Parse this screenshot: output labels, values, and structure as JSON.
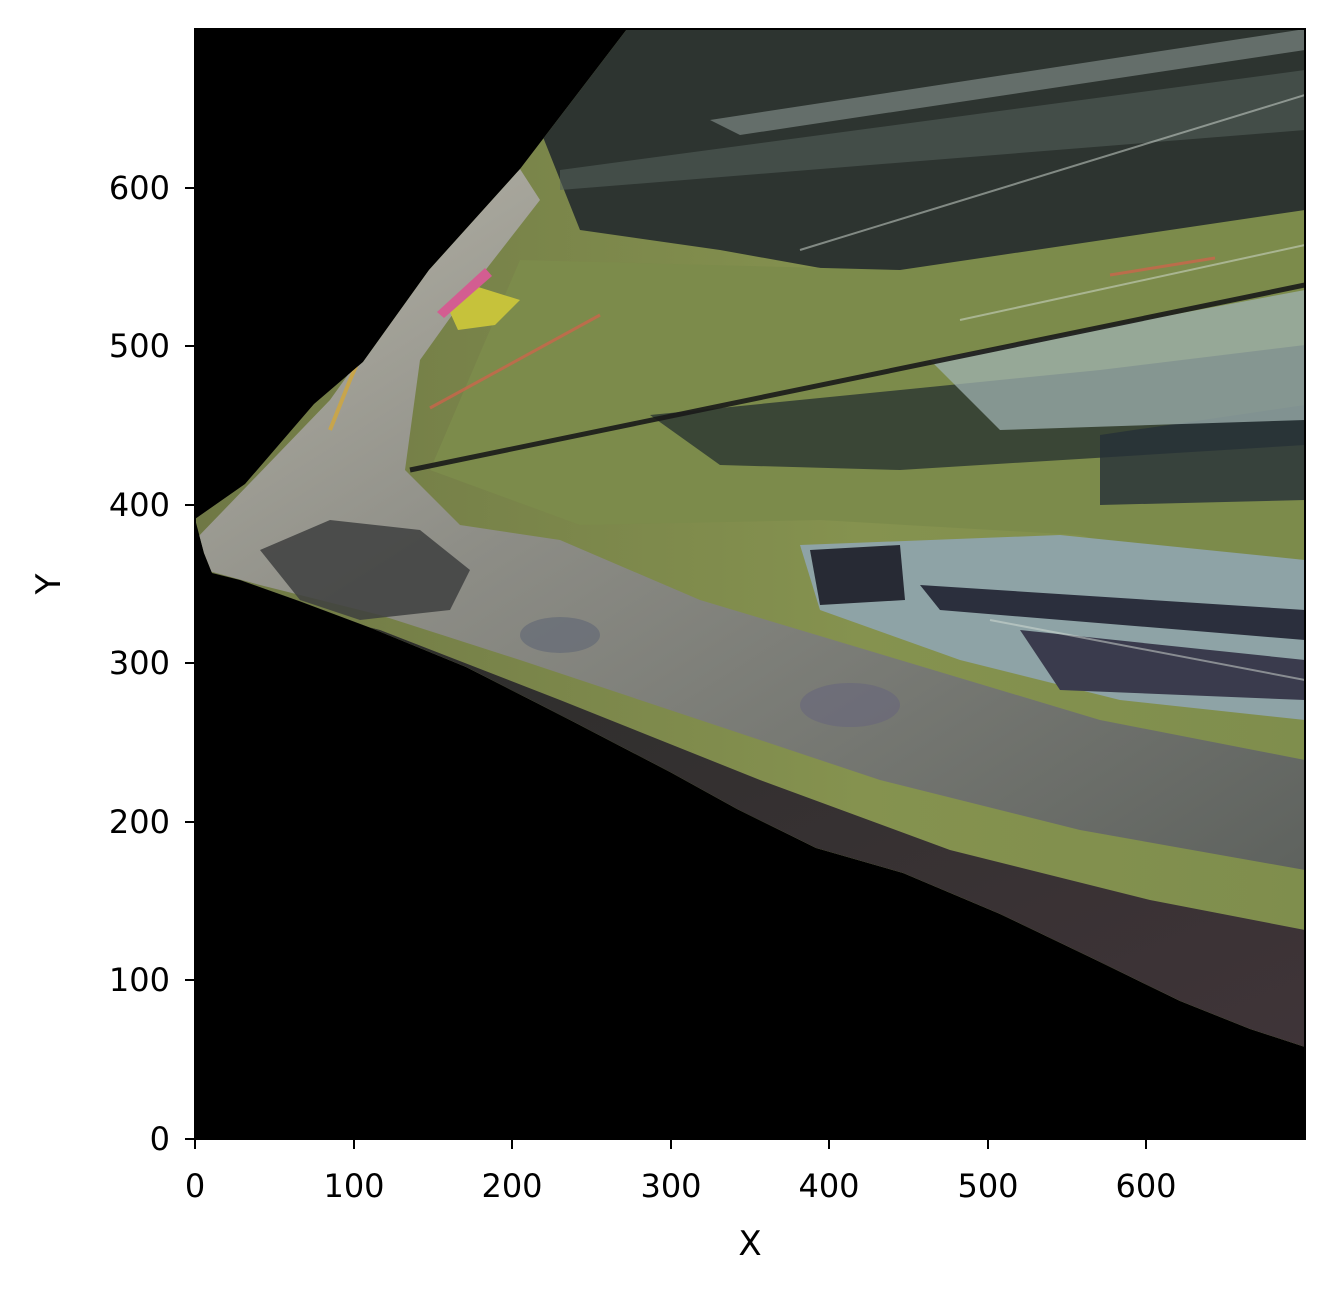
{
  "figure": {
    "xlabel": "X",
    "ylabel": "Y",
    "x_ticks": [
      "0",
      "100",
      "200",
      "300",
      "400",
      "500",
      "600"
    ],
    "y_ticks": [
      "0",
      "100",
      "200",
      "300",
      "400",
      "500",
      "600"
    ],
    "xlim": [
      0,
      700
    ],
    "ylim": [
      0,
      700
    ],
    "background_color": "#000000",
    "image_description_colors": {
      "road": "#8f8f88",
      "grass": "#77864a",
      "dark_vegetation": "#2d3430",
      "shadow_band": "#3b3336",
      "vehicle_light": "#9fb2b0",
      "vehicle_dark": "#272a34"
    }
  }
}
